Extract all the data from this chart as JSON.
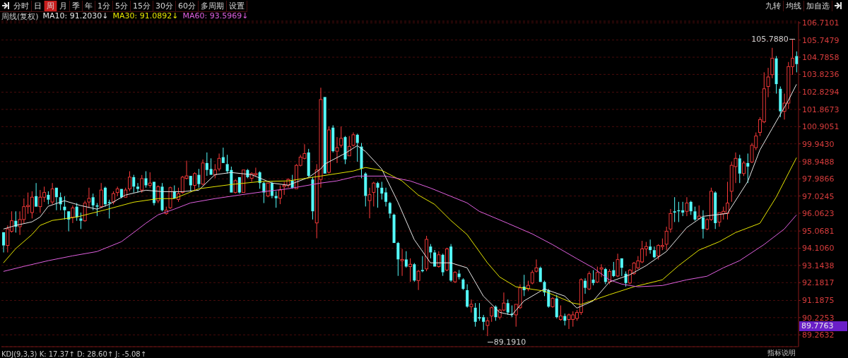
{
  "chart_data": {
    "type": "candlestick",
    "categories": [
      null,
      null,
      null,
      null,
      null,
      null,
      null,
      null,
      null,
      null,
      null,
      null,
      null,
      null,
      null,
      null,
      null,
      null,
      null,
      null,
      null,
      null,
      null,
      null,
      null,
      null,
      null,
      null,
      null,
      null,
      null,
      null,
      null,
      null,
      null,
      null,
      null,
      null,
      null,
      null,
      null,
      null,
      null,
      null,
      null,
      null,
      null,
      null,
      null,
      null,
      null,
      null,
      null,
      null,
      null,
      null,
      null,
      null,
      null,
      null,
      null,
      null,
      null,
      null,
      null,
      null,
      null,
      null,
      null,
      null,
      null,
      null,
      null,
      null,
      null,
      null,
      null,
      null,
      null,
      null,
      null,
      null,
      null,
      null,
      null,
      null,
      null,
      null,
      null,
      null,
      null,
      null,
      null,
      null,
      null,
      null,
      null,
      null,
      null,
      null,
      null,
      null,
      null,
      null,
      null,
      null,
      null,
      null,
      null,
      null,
      null,
      null,
      null,
      null,
      null,
      null,
      null,
      null,
      null,
      null,
      null,
      null,
      null,
      null,
      null,
      null,
      null,
      null,
      null,
      null,
      null,
      null,
      null,
      null,
      null,
      null,
      null,
      null,
      null,
      null,
      null,
      null,
      null,
      null,
      null,
      null,
      null,
      null,
      null,
      null,
      null,
      null,
      null,
      null,
      null,
      null,
      null,
      null,
      null,
      null,
      null,
      null,
      null,
      null,
      null,
      null,
      null,
      null,
      null,
      null,
      null,
      null,
      null,
      null,
      null,
      null,
      null,
      null,
      null,
      null,
      null,
      null,
      null,
      null,
      null,
      null,
      null,
      null,
      null,
      null,
      null,
      null,
      null,
      null,
      null,
      null
    ],
    "ohlc": [
      [
        95.0,
        95.05,
        93.87,
        94.26
      ],
      [
        94.26,
        95.38,
        93.87,
        95.19
      ],
      [
        95.05,
        96.17,
        94.98,
        95.64
      ],
      [
        95.64,
        96.17,
        94.98,
        95.31
      ],
      [
        95.31,
        96.17,
        94.85,
        95.71
      ],
      [
        95.71,
        96.89,
        95.51,
        96.43
      ],
      [
        96.43,
        97.22,
        96.04,
        96.5
      ],
      [
        96.1,
        97.29,
        95.77,
        96.96
      ],
      [
        97.02,
        97.75,
        96.43,
        96.43
      ],
      [
        96.43,
        97.36,
        96.1,
        96.96
      ],
      [
        96.96,
        97.55,
        96.69,
        97.22
      ],
      [
        97.09,
        97.29,
        96.56,
        96.82
      ],
      [
        96.69,
        97.75,
        96.56,
        97.42
      ],
      [
        97.49,
        97.49,
        96.23,
        96.96
      ],
      [
        96.96,
        97.22,
        96.23,
        96.56
      ],
      [
        96.43,
        97.02,
        95.71,
        96.23
      ],
      [
        96.17,
        96.17,
        95.05,
        95.71
      ],
      [
        95.84,
        96.5,
        95.51,
        96.36
      ],
      [
        96.43,
        96.63,
        95.64,
        95.84
      ],
      [
        95.77,
        96.1,
        95.18,
        95.64
      ],
      [
        95.64,
        96.76,
        95.58,
        96.63
      ],
      [
        96.69,
        97.49,
        96.36,
        96.89
      ],
      [
        96.96,
        97.16,
        96.23,
        96.5
      ],
      [
        96.5,
        96.63,
        95.9,
        96.43
      ],
      [
        96.43,
        97.75,
        96.36,
        97.36
      ],
      [
        97.49,
        97.55,
        96.43,
        96.56
      ],
      [
        96.69,
        96.82,
        95.77,
        96.63
      ],
      [
        96.69,
        97.29,
        96.56,
        97.16
      ],
      [
        97.22,
        97.55,
        97.02,
        97.42
      ],
      [
        97.42,
        97.42,
        96.89,
        96.96
      ],
      [
        96.96,
        97.49,
        96.96,
        97.36
      ],
      [
        97.42,
        98.41,
        97.29,
        98.08
      ],
      [
        98.08,
        98.21,
        97.22,
        97.55
      ],
      [
        97.55,
        97.75,
        97.22,
        97.42
      ],
      [
        97.36,
        98.2,
        97.2,
        98.0
      ],
      [
        98.02,
        98.41,
        97.49,
        97.62
      ],
      [
        97.62,
        98.35,
        97.49,
        97.75
      ],
      [
        97.82,
        97.82,
        96.5,
        96.63
      ],
      [
        96.76,
        97.62,
        96.63,
        97.55
      ],
      [
        97.55,
        97.75,
        96.17,
        96.23
      ],
      [
        96.04,
        96.43,
        95.98,
        96.23
      ],
      [
        96.37,
        97.55,
        96.3,
        97.49
      ],
      [
        97.29,
        97.62,
        96.89,
        96.89
      ],
      [
        96.83,
        97.49,
        96.7,
        97.16
      ],
      [
        97.22,
        98.15,
        97.16,
        98.08
      ],
      [
        98.02,
        99.0,
        97.95,
        98.15
      ],
      [
        98.15,
        98.15,
        97.29,
        97.62
      ],
      [
        97.62,
        98.35,
        97.36,
        98.28
      ],
      [
        98.21,
        98.54,
        97.49,
        97.69
      ],
      [
        97.69,
        99.07,
        97.62,
        98.87
      ],
      [
        98.87,
        99.46,
        98.15,
        98.48
      ],
      [
        98.54,
        99.13,
        98.21,
        98.21
      ],
      [
        98.21,
        98.81,
        98.02,
        98.48
      ],
      [
        98.54,
        99.4,
        98.41,
        99.13
      ],
      [
        99.2,
        99.73,
        98.87,
        98.87
      ],
      [
        98.81,
        99.33,
        98.28,
        98.41
      ],
      [
        98.48,
        98.67,
        97.22,
        97.22
      ],
      [
        97.22,
        97.95,
        97.16,
        97.88
      ],
      [
        98.08,
        98.08,
        97.16,
        97.22
      ],
      [
        97.22,
        98.48,
        97.22,
        98.48
      ],
      [
        98.48,
        98.54,
        98.02,
        98.08
      ],
      [
        98.02,
        98.35,
        97.82,
        98.28
      ],
      [
        98.21,
        98.61,
        98.15,
        98.28
      ],
      [
        98.35,
        98.41,
        97.43,
        97.75
      ],
      [
        97.75,
        97.82,
        96.63,
        97.22
      ],
      [
        97.03,
        97.75,
        96.96,
        97.75
      ],
      [
        97.75,
        97.82,
        96.9,
        97.03
      ],
      [
        97.03,
        97.29,
        96.37,
        96.9
      ],
      [
        96.9,
        97.62,
        96.57,
        97.36
      ],
      [
        97.55,
        97.82,
        97.09,
        97.62
      ],
      [
        97.62,
        98.02,
        97.49,
        97.95
      ],
      [
        97.88,
        98.21,
        97.43,
        97.49
      ],
      [
        97.43,
        98.81,
        97.43,
        98.74
      ],
      [
        98.74,
        99.33,
        98.68,
        99.2
      ],
      [
        99.13,
        99.92,
        99.07,
        99.4
      ],
      [
        99.46,
        99.66,
        98.08,
        98.15
      ],
      [
        97.95,
        98.08,
        95.71,
        96.17
      ],
      [
        95.52,
        98.81,
        94.66,
        98.48
      ],
      [
        97.95,
        103.08,
        97.49,
        102.42
      ],
      [
        102.56,
        102.56,
        98.28,
        98.28
      ],
      [
        98.35,
        100.91,
        98.28,
        100.72
      ],
      [
        100.85,
        100.98,
        99.46,
        99.53
      ],
      [
        99.53,
        100.32,
        98.87,
        99.73
      ],
      [
        99.86,
        100.91,
        99.73,
        100.25
      ],
      [
        100.32,
        100.38,
        98.81,
        99.07
      ],
      [
        99.27,
        100.38,
        99.27,
        99.8
      ],
      [
        99.86,
        100.58,
        99.79,
        100.45
      ],
      [
        100.45,
        100.51,
        98.94,
        99.99
      ],
      [
        99.79,
        99.99,
        98.02,
        98.55
      ],
      [
        98.28,
        98.35,
        96.44,
        97.03
      ],
      [
        96.77,
        97.49,
        95.78,
        97.1
      ],
      [
        97.23,
        97.82,
        96.44,
        97.75
      ],
      [
        97.75,
        97.82,
        96.37,
        97.49
      ],
      [
        97.49,
        97.82,
        96.83,
        97.16
      ],
      [
        97.23,
        97.49,
        96.44,
        96.7
      ],
      [
        96.64,
        96.7,
        95.78,
        96.04
      ],
      [
        95.98,
        96.04,
        94.4,
        94.4
      ],
      [
        94.4,
        94.46,
        92.56,
        93.48
      ],
      [
        93.41,
        94.07,
        92.56,
        93.48
      ],
      [
        93.48,
        93.94,
        93.02,
        93.08
      ],
      [
        93.08,
        93.54,
        92.23,
        93.21
      ],
      [
        93.21,
        93.28,
        92.23,
        92.3
      ],
      [
        92.3,
        92.89,
        91.77,
        92.82
      ],
      [
        92.89,
        93.67,
        92.76,
        92.82
      ],
      [
        92.95,
        94.8,
        92.82,
        94.6
      ],
      [
        94.2,
        94.34,
        93.54,
        93.87
      ],
      [
        93.87,
        94.01,
        93.08,
        93.08
      ],
      [
        93.08,
        93.94,
        93.02,
        93.74
      ],
      [
        93.74,
        93.8,
        92.56,
        92.76
      ],
      [
        92.89,
        94.14,
        92.82,
        94.07
      ],
      [
        94.2,
        94.34,
        92.23,
        92.3
      ],
      [
        92.23,
        92.82,
        92.16,
        92.76
      ],
      [
        92.69,
        92.89,
        92.36,
        92.49
      ],
      [
        92.36,
        92.43,
        91.77,
        91.83
      ],
      [
        91.76,
        92.09,
        90.78,
        90.84
      ],
      [
        90.84,
        91.24,
        90.51,
        90.97
      ],
      [
        90.78,
        91.04,
        89.72,
        89.99
      ],
      [
        90.25,
        91.04,
        90.05,
        90.18
      ],
      [
        90.25,
        90.38,
        89.53,
        89.99
      ],
      [
        89.79,
        90.25,
        89.191,
        90.05
      ],
      [
        90.32,
        90.84,
        89.99,
        90.78
      ],
      [
        90.84,
        90.91,
        90.05,
        90.25
      ],
      [
        90.25,
        90.71,
        90.12,
        90.65
      ],
      [
        90.65,
        91.63,
        90.58,
        91.04
      ],
      [
        91.04,
        91.24,
        90.38,
        90.51
      ],
      [
        90.45,
        90.91,
        90.25,
        90.38
      ],
      [
        90.38,
        90.97,
        89.72,
        90.97
      ],
      [
        90.78,
        92.09,
        90.71,
        91.89
      ],
      [
        91.96,
        92.62,
        91.43,
        91.76
      ],
      [
        91.83,
        92.29,
        91.7,
        92.03
      ],
      [
        92.16,
        92.88,
        92.09,
        92.75
      ],
      [
        92.82,
        93.48,
        92.75,
        93.01
      ],
      [
        93.01,
        93.08,
        92.22,
        92.22
      ],
      [
        92.22,
        92.29,
        91.43,
        91.63
      ],
      [
        91.76,
        91.83,
        90.78,
        90.84
      ],
      [
        90.84,
        91.37,
        90.78,
        91.3
      ],
      [
        91.3,
        91.5,
        90.18,
        90.25
      ],
      [
        90.12,
        90.91,
        90.05,
        90.32
      ],
      [
        90.32,
        90.45,
        89.79,
        90.05
      ],
      [
        90.12,
        90.45,
        89.59,
        90.38
      ],
      [
        90.12,
        90.58,
        89.72,
        90.38
      ],
      [
        90.18,
        90.65,
        90.05,
        90.51
      ],
      [
        90.51,
        92.42,
        90.38,
        92.35
      ],
      [
        92.29,
        92.42,
        91.56,
        91.89
      ],
      [
        91.83,
        92.81,
        91.76,
        92.68
      ],
      [
        92.35,
        92.88,
        92.03,
        92.16
      ],
      [
        92.22,
        93.08,
        92.16,
        92.75
      ],
      [
        92.94,
        93.21,
        92.49,
        93.01
      ],
      [
        92.94,
        93.01,
        92.09,
        92.22
      ],
      [
        92.22,
        92.94,
        92.09,
        92.81
      ],
      [
        92.88,
        93.34,
        92.49,
        92.55
      ],
      [
        92.55,
        93.8,
        92.49,
        93.47
      ],
      [
        93.54,
        93.54,
        92.55,
        93.01
      ],
      [
        92.68,
        92.81,
        91.96,
        92.16
      ],
      [
        92.16,
        92.94,
        92.09,
        92.88
      ],
      [
        92.68,
        93.34,
        92.62,
        93.27
      ],
      [
        93.01,
        93.67,
        92.94,
        93.4
      ],
      [
        93.34,
        94.52,
        93.27,
        94.07
      ],
      [
        94.07,
        94.46,
        93.67,
        94.2
      ],
      [
        94.2,
        94.59,
        93.8,
        94.0
      ],
      [
        94.0,
        94.2,
        93.54,
        93.6
      ],
      [
        93.67,
        94.33,
        93.47,
        94.26
      ],
      [
        94.2,
        94.65,
        94.0,
        94.26
      ],
      [
        94.33,
        95.31,
        94.0,
        95.05
      ],
      [
        95.18,
        96.3,
        94.98,
        96.04
      ],
      [
        96.17,
        96.96,
        95.57,
        96.1
      ],
      [
        96.23,
        96.7,
        95.57,
        96.17
      ],
      [
        96.23,
        96.7,
        95.9,
        96.1
      ],
      [
        96.17,
        96.96,
        95.9,
        96.63
      ],
      [
        96.7,
        96.76,
        95.97,
        96.17
      ],
      [
        96.17,
        96.43,
        95.64,
        95.71
      ],
      [
        95.77,
        96.5,
        95.71,
        95.9
      ],
      [
        95.84,
        96.23,
        94.65,
        95.18
      ],
      [
        95.18,
        95.77,
        95.11,
        95.71
      ],
      [
        95.71,
        97.49,
        95.64,
        97.29
      ],
      [
        97.22,
        97.29,
        95.18,
        95.51
      ],
      [
        95.57,
        96.1,
        95.31,
        96.1
      ],
      [
        96.04,
        96.43,
        95.71,
        96.17
      ],
      [
        96.04,
        97.82,
        95.71,
        96.63
      ],
      [
        97.29,
        98.93,
        96.7,
        98.74
      ],
      [
        98.67,
        99.46,
        97.75,
        99.13
      ],
      [
        99.13,
        99.33,
        97.75,
        98.28
      ],
      [
        98.28,
        98.99,
        98.14,
        98.87
      ],
      [
        98.87,
        99.4,
        97.75,
        98.67
      ],
      [
        98.93,
        99.99,
        98.87,
        99.86
      ],
      [
        99.73,
        100.58,
        99.59,
        100.38
      ],
      [
        100.58,
        101.43,
        100.38,
        101.3
      ],
      [
        101.17,
        103.94,
        101.1,
        103.02
      ],
      [
        103.15,
        104.19,
        102.55,
        103.68
      ],
      [
        103.81,
        105.31,
        103.61,
        104.72
      ],
      [
        104.72,
        104.85,
        102.75,
        103.28
      ],
      [
        103.02,
        103.15,
        101.43,
        101.76
      ],
      [
        101.76,
        102.75,
        101.3,
        102.22
      ],
      [
        102.22,
        104.52,
        101.89,
        104.26
      ],
      [
        104.26,
        105.788,
        103.8,
        104.72
      ],
      [
        104.85,
        105.11,
        103.94,
        104.4
      ]
    ],
    "series": [
      {
        "type": "line",
        "name": "MA10: 91.2030↓",
        "color": "#e8e8e8",
        "values": [
          95.18,
          null,
          null,
          95.38,
          null,
          null,
          null,
          95.58,
          null,
          95.85,
          null,
          96.45,
          null,
          null,
          null,
          96.76,
          null,
          null,
          null,
          96.49,
          null,
          null,
          null,
          96.29,
          null,
          null,
          96.56,
          null,
          null,
          null,
          97.08,
          null,
          null,
          null,
          null,
          97.35,
          null,
          null,
          null,
          97.27,
          null,
          null,
          null,
          null,
          97.27,
          null,
          null,
          null,
          97.35,
          null,
          null,
          null,
          98.22,
          null,
          null,
          null,
          98.34,
          null,
          null,
          null,
          null,
          98.22,
          null,
          null,
          null,
          null,
          97.75,
          null,
          null,
          null,
          97.63,
          null,
          null,
          null,
          null,
          98.06,
          null,
          null,
          98.54,
          98.81,
          null,
          null,
          null,
          null,
          99.41,
          null,
          null,
          99.84,
          null,
          99.52,
          null,
          null,
          null,
          98.54,
          null,
          null,
          null,
          96.68,
          null,
          null,
          null,
          94.59,
          null,
          null,
          null,
          93.29,
          null,
          null,
          null,
          null,
          93.29,
          null,
          null,
          null,
          93.01,
          null,
          null,
          null,
          91.43,
          null,
          null,
          null,
          90.52,
          null,
          null,
          90.37,
          null,
          null,
          91.16,
          null,
          null,
          null,
          null,
          91.83,
          null,
          null,
          null,
          null,
          91.43,
          null,
          null,
          90.76,
          null,
          null,
          null,
          91.16,
          null,
          null,
          null,
          92.22,
          null,
          null,
          null,
          null,
          92.62,
          null,
          null,
          null,
          93.13,
          null,
          null,
          null,
          null,
          93.92,
          null,
          null,
          null,
          null,
          95.26,
          null,
          null,
          null,
          95.89,
          null,
          null,
          null,
          null,
          null,
          96.05,
          null,
          null,
          null,
          null,
          97.83,
          null,
          null,
          99.6,
          null,
          null,
          100.79,
          null,
          null,
          null,
          102.37,
          null,
          103.27
        ]
      },
      {
        "type": "line",
        "name": "MA30: 91.0892↓",
        "color": "#e6e600",
        "values": [
          93.29,
          null,
          null,
          94.08,
          null,
          null,
          null,
          94.87,
          null,
          95.38,
          null,
          null,
          95.66,
          null,
          null,
          null,
          null,
          null,
          95.85,
          null,
          null,
          null,
          null,
          null,
          null,
          96.25,
          null,
          null,
          null,
          null,
          null,
          null,
          96.68,
          null,
          null,
          null,
          null,
          null,
          96.88,
          null,
          null,
          null,
          96.88,
          null,
          null,
          null,
          null,
          null,
          97.43,
          null,
          null,
          null,
          null,
          null,
          null,
          null,
          97.67,
          null,
          null,
          null,
          null,
          null,
          null,
          97.83,
          null,
          null,
          null,
          null,
          null,
          null,
          97.87,
          null,
          null,
          null,
          null,
          null,
          null,
          null,
          98.14,
          null,
          null,
          null,
          null,
          null,
          null,
          null,
          98.42,
          null,
          null,
          98.62,
          null,
          null,
          null,
          98.46,
          null,
          null,
          null,
          null,
          97.87,
          null,
          null,
          null,
          97.08,
          null,
          null,
          null,
          96.56,
          null,
          null,
          null,
          95.66,
          null,
          null,
          null,
          94.87,
          null,
          null,
          null,
          null,
          93.29,
          null,
          null,
          92.5,
          null,
          null,
          null,
          91.95,
          null,
          null,
          null,
          null,
          null,
          null,
          91.71,
          null,
          null,
          null,
          null,
          null,
          null,
          91.04,
          null,
          90.96,
          null,
          null,
          null,
          null,
          null,
          null,
          91.51,
          null,
          null,
          null,
          null,
          null,
          91.95,
          null,
          null,
          null,
          null,
          null,
          null,
          92.34,
          null,
          null,
          null,
          93.13,
          null,
          null,
          null,
          null,
          94.0,
          null,
          null,
          null,
          null,
          94.47,
          null,
          null,
          null,
          94.98,
          null,
          null,
          null,
          null,
          null,
          95.5,
          null,
          null,
          null,
          96.96,
          null,
          null,
          null,
          null,
          99.17
        ]
      },
      {
        "type": "line",
        "name": "MA60: 93.5969↓",
        "color": "#e060e0",
        "values": [
          92.81,
          null,
          null,
          null,
          null,
          93.09,
          null,
          null,
          null,
          null,
          null,
          93.41,
          null,
          null,
          null,
          null,
          null,
          93.68,
          null,
          null,
          null,
          null,
          null,
          93.92,
          null,
          null,
          null,
          null,
          null,
          94.47,
          null,
          null,
          94.98,
          null,
          null,
          95.5,
          null,
          null,
          95.97,
          null,
          null,
          null,
          96.29,
          null,
          null,
          null,
          96.64,
          null,
          null,
          null,
          null,
          null,
          96.88,
          null,
          null,
          null,
          null,
          null,
          97.08,
          null,
          null,
          null,
          null,
          null,
          97.27,
          null,
          null,
          null,
          null,
          null,
          97.43,
          null,
          null,
          null,
          null,
          null,
          null,
          null,
          97.75,
          null,
          null,
          null,
          97.87,
          null,
          null,
          null,
          null,
          98.14,
          null,
          null,
          null,
          null,
          null,
          null,
          98.14,
          null,
          null,
          null,
          null,
          null,
          97.87,
          null,
          null,
          null,
          null,
          97.47,
          null,
          null,
          null,
          null,
          null,
          null,
          null,
          null,
          96.64,
          null,
          null,
          96.17,
          null,
          null,
          null,
          null,
          null,
          null,
          95.5,
          null,
          null,
          null,
          null,
          null,
          94.91,
          null,
          null,
          null,
          null,
          94.31,
          null,
          null,
          null,
          null,
          null,
          93.52,
          null,
          null,
          null,
          93.01,
          null,
          null,
          null,
          92.34,
          null,
          null,
          92.1,
          null,
          null,
          null,
          91.95,
          null,
          null,
          null,
          null,
          null,
          92.02,
          null,
          null,
          null,
          null,
          null,
          92.34,
          null,
          null,
          null,
          null,
          92.54,
          null,
          null,
          null,
          93.01,
          null,
          null,
          null,
          93.41,
          null,
          null,
          null,
          null,
          null,
          94.31,
          null,
          null,
          null,
          null,
          95.18,
          null,
          null,
          95.97
        ]
      }
    ],
    "ylim": [
      88.6,
      106.8
    ],
    "yticks": [
      106.7101,
      105.7479,
      104.7858,
      103.8236,
      102.8294,
      101.8673,
      100.9051,
      {
        "value": 99.943,
        "label": "99.9430"
      },
      98.9488,
      97.9866,
      97.0245,
      96.0623,
      95.0681,
      {
        "value": 94.106,
        "label": "94.1060"
      },
      93.1438,
      92.1817,
      91.1875,
      90.2253,
      89.2632
    ],
    "tick_labels": "y",
    "grid": "y",
    "legend": "top left",
    "legend_title": "周线(复权)",
    "annotations": [
      "分时",
      "日",
      "周",
      "月",
      "季",
      "年",
      "1分",
      "5分",
      "15分",
      "30分",
      "60分",
      "多周期",
      "设置",
      "九转",
      "均线",
      "加自选",
      "KDJ(9,3,3) K: 17.37↑ D: 28.60↑ J: -5.08↑",
      "指标说明",
      "105.7880",
      "89.1910",
      "89.7763"
    ]
  }
}
